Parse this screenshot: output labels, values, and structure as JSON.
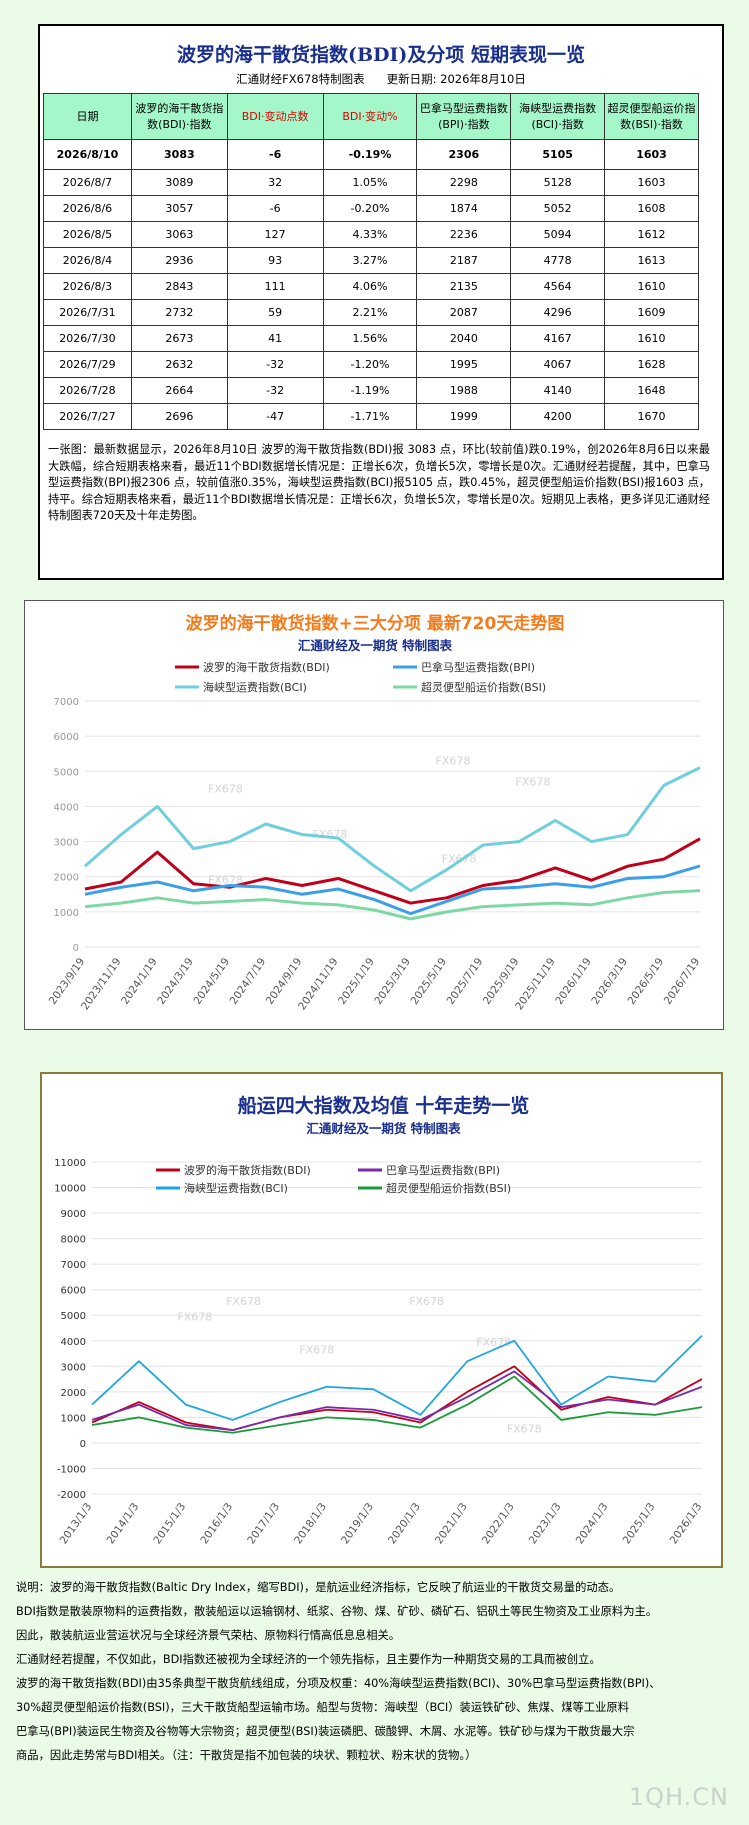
{
  "table_section": {
    "title": "波罗的海干散货指数(BDI)及分项  短期表现一览",
    "source": "汇通财经FX678特制图表",
    "update": "更新日期: 2026年8月10日",
    "headers": [
      "日期",
      "波罗的海干散货指数(BDI)·指数",
      "BDI·变动点数",
      "BDI·变动%",
      "巴拿马型运费指数(BPI)·指数",
      "海峡型运费指数(BCI)·指数",
      "超灵便型船运价指数(BSI)·指数"
    ],
    "rows": [
      [
        "2026/8/10",
        "3083",
        "-6",
        "-0.19%",
        "2306",
        "5105",
        "1603"
      ],
      [
        "2026/8/7",
        "3089",
        "32",
        "1.05%",
        "2298",
        "5128",
        "1603"
      ],
      [
        "2026/8/6",
        "3057",
        "-6",
        "-0.20%",
        "1874",
        "5052",
        "1608"
      ],
      [
        "2026/8/5",
        "3063",
        "127",
        "4.33%",
        "2236",
        "5094",
        "1612"
      ],
      [
        "2026/8/4",
        "2936",
        "93",
        "3.27%",
        "2187",
        "4778",
        "1613"
      ],
      [
        "2026/8/3",
        "2843",
        "111",
        "4.06%",
        "2135",
        "4564",
        "1610"
      ],
      [
        "2026/7/31",
        "2732",
        "59",
        "2.21%",
        "2087",
        "4296",
        "1609"
      ],
      [
        "2026/7/30",
        "2673",
        "41",
        "1.56%",
        "2040",
        "4167",
        "1610"
      ],
      [
        "2026/7/29",
        "2632",
        "-32",
        "-1.20%",
        "1995",
        "4067",
        "1628"
      ],
      [
        "2026/7/28",
        "2664",
        "-32",
        "-1.19%",
        "1988",
        "4140",
        "1648"
      ],
      [
        "2026/7/27",
        "2696",
        "-47",
        "-1.71%",
        "1999",
        "4200",
        "1670"
      ]
    ],
    "note": "一张图：最新数据显示，2026年8月10日 波罗的海干散货指数(BDI)报 3083 点，环比(较前值)跌0.19%，创2026年8月6日以来最大跌幅，综合短期表格来看，最近11个BDI数据增长情况是：正增长6次，负增长5次，零增长是0次。汇通财经若提醒，其中，巴拿马型运费指数(BPI)报2306 点，较前值涨0.35%，海峡型运费指数(BCI)报5105 点，跌0.45%，超灵便型船运价指数(BSI)报1603 点，持平。综合短期表格来看，最近11个BDI数据增长情况是：正增长6次，负增长5次，零增长是0次。短期见上表格，更多详见汇通财经特制图表720天及十年走势图。"
  },
  "chart_data": [
    {
      "type": "line",
      "title": "波罗的海干散货指数+三大分项  最新720天走势图",
      "subtitle": "汇通财经及一期货  特制图表",
      "xlabel": "",
      "ylabel": "",
      "ylim": [
        0,
        7000
      ],
      "yticks": [
        0,
        1000,
        2000,
        3000,
        4000,
        5000,
        6000,
        7000
      ],
      "x": [
        "2023/9/19",
        "2023/11/19",
        "2024/1/19",
        "2024/3/19",
        "2024/5/19",
        "2024/7/19",
        "2024/9/19",
        "2024/11/19",
        "2025/1/19",
        "2025/3/19",
        "2025/5/19",
        "2025/7/19",
        "2025/9/19",
        "2025/11/19",
        "2026/1/19",
        "2026/3/19",
        "2026/5/19",
        "2026/7/19"
      ],
      "legend_position": "top",
      "grid": true,
      "watermarks": [
        "FX678",
        "FX678",
        "FX678",
        "FX678",
        "FX678",
        "FX678"
      ],
      "series": [
        {
          "name": "波罗的海干散货指数(BDI)",
          "color": "#c0001a",
          "values": [
            1650,
            1850,
            2700,
            1800,
            1700,
            1950,
            1750,
            1950,
            1600,
            1250,
            1400,
            1750,
            1900,
            2250,
            1900,
            2300,
            2500,
            3083
          ]
        },
        {
          "name": "巴拿马型运费指数(BPI)",
          "color": "#3a9ee8",
          "values": [
            1500,
            1700,
            1850,
            1600,
            1750,
            1700,
            1500,
            1650,
            1350,
            950,
            1300,
            1650,
            1700,
            1800,
            1700,
            1950,
            2000,
            2306
          ]
        },
        {
          "name": "海峡型运费指数(BCI)",
          "color": "#6fcfdc",
          "values": [
            2300,
            3200,
            4000,
            2800,
            3000,
            3500,
            3200,
            3100,
            2300,
            1600,
            2200,
            2900,
            3000,
            3600,
            3000,
            3200,
            4600,
            5105
          ]
        },
        {
          "name": "超灵便型船运价指数(BSI)",
          "color": "#7ed8a4",
          "values": [
            1150,
            1250,
            1400,
            1250,
            1300,
            1350,
            1250,
            1200,
            1050,
            800,
            1000,
            1150,
            1200,
            1250,
            1200,
            1400,
            1550,
            1603
          ]
        }
      ]
    },
    {
      "type": "line",
      "title": "船运四大指数及均值 十年走势一览",
      "subtitle": "汇通财经及一期货 特制图表",
      "xlabel": "",
      "ylabel": "",
      "ylim": [
        -2000,
        11000
      ],
      "yticks": [
        -2000,
        -1000,
        0,
        1000,
        2000,
        3000,
        4000,
        5000,
        6000,
        7000,
        8000,
        9000,
        10000,
        11000
      ],
      "x": [
        "2013/1/3",
        "2014/1/3",
        "2015/1/3",
        "2016/1/3",
        "2017/1/3",
        "2018/1/3",
        "2019/1/3",
        "2020/1/3",
        "2021/1/3",
        "2022/1/3",
        "2023/1/3",
        "2024/1/3",
        "2025/1/3",
        "2026/1/3"
      ],
      "legend_position": "top",
      "grid": true,
      "watermarks": [
        "FX678",
        "FX678",
        "FX678",
        "FX678",
        "FX678",
        "FX678"
      ],
      "series": [
        {
          "name": "波罗的海干散货指数(BDI)",
          "color": "#c0001a",
          "values": [
            800,
            1600,
            800,
            500,
            1000,
            1300,
            1200,
            800,
            2000,
            3000,
            1300,
            1800,
            1500,
            2500
          ]
        },
        {
          "name": "巴拿马型运费指数(BPI)",
          "color": "#7a2aa8",
          "values": [
            900,
            1500,
            700,
            500,
            1000,
            1400,
            1300,
            900,
            1800,
            2800,
            1400,
            1700,
            1500,
            2200
          ]
        },
        {
          "name": "海峡型运费指数(BCI)",
          "color": "#1fa6e0",
          "values": [
            1500,
            3200,
            1500,
            900,
            1600,
            2200,
            2100,
            1100,
            3200,
            4000,
            1500,
            2600,
            2400,
            4200
          ]
        },
        {
          "name": "超灵便型船运价指数(BSI)",
          "color": "#1a9a3a",
          "values": [
            700,
            1000,
            600,
            400,
            700,
            1000,
            900,
            600,
            1500,
            2600,
            900,
            1200,
            1100,
            1400
          ]
        }
      ]
    }
  ],
  "footer": {
    "lines": [
      "说明：波罗的海干散货指数(Baltic Dry Index，缩写BDI)，是航运业经济指标，它反映了航运业的干散货交易量的动态。",
      "BDI指数是散装原物料的运费指数，散装船运以运输钢材、纸浆、谷物、煤、矿砂、磷矿石、铝矾土等民生物资及工业原料为主。",
      "因此，散装航运业营运状况与全球经济景气荣枯、原物料行情高低息息相关。",
      "汇通财经若提醒，不仅如此，BDI指数还被视为全球经济的一个领先指标，且主要作为一种期货交易的工具而被创立。",
      "波罗的海干散货指数(BDI)由35条典型干散货航线组成，分项及权重：40%海峡型运费指数(BCI)、30%巴拿马型运费指数(BPI)、",
      "30%超灵便型船运价指数(BSI)，三大干散货船型运输市场。船型与货物：海峡型（BCI）装运铁矿砂、焦煤、煤等工业原料",
      "巴拿马(BPI)装运民生物资及谷物等大宗物资；超灵便型(BSI)装运磷肥、碳酸钾、木屑、水泥等。铁矿砂与煤为干散货最大宗",
      "商品，因此走势常与BDI相关。（注：干散货是指不加包装的块状、颗粒状、粉末状的货物。）"
    ],
    "watermark": "1QH.CN"
  }
}
